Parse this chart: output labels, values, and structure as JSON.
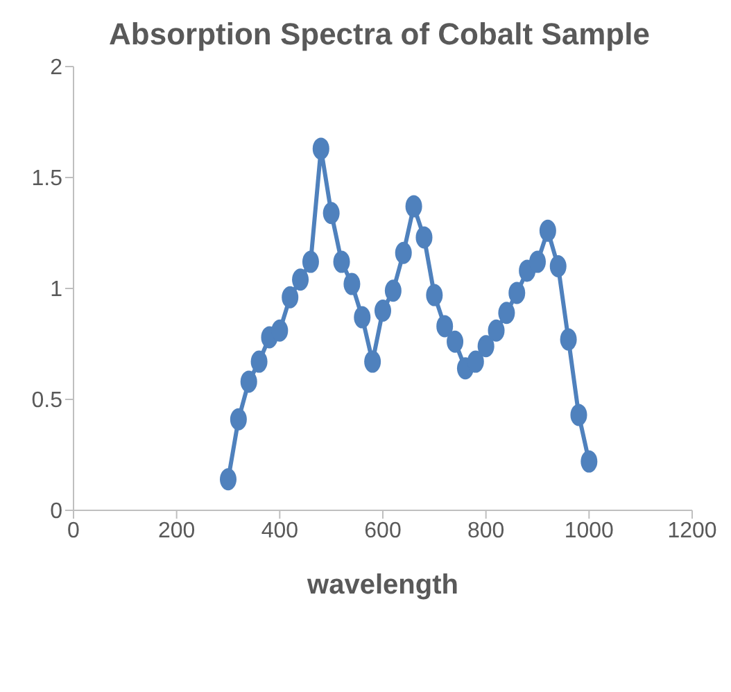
{
  "chart_data": {
    "type": "line",
    "title": "Absorption Spectra of Cobalt Sample",
    "xlabel": "wavelength",
    "x": [
      300,
      320,
      340,
      360,
      380,
      400,
      420,
      440,
      460,
      480,
      500,
      520,
      540,
      560,
      580,
      600,
      620,
      640,
      660,
      680,
      700,
      720,
      740,
      760,
      780,
      800,
      820,
      840,
      860,
      880,
      900,
      920,
      940,
      960,
      980,
      1000
    ],
    "series": [
      {
        "color": "#4f81bd",
        "values": [
          0.14,
          0.41,
          0.58,
          0.67,
          0.78,
          0.81,
          0.96,
          1.04,
          1.12,
          1.63,
          1.34,
          1.12,
          1.02,
          0.87,
          0.67,
          0.9,
          0.99,
          1.16,
          1.37,
          1.23,
          0.97,
          0.83,
          0.76,
          0.64,
          0.67,
          0.74,
          0.81,
          0.89,
          0.98,
          1.08,
          1.12,
          1.26,
          1.1,
          0.77,
          0.43,
          0.22
        ]
      }
    ],
    "xlim": [
      0,
      1200
    ],
    "xticks": [
      0,
      200,
      400,
      600,
      800,
      1000,
      1200
    ],
    "ylim": [
      0,
      2
    ],
    "yticks": [
      0,
      0.5,
      1,
      1.5,
      2
    ],
    "grid": false,
    "legend": false,
    "marker": "circle",
    "line_style": "solid"
  }
}
